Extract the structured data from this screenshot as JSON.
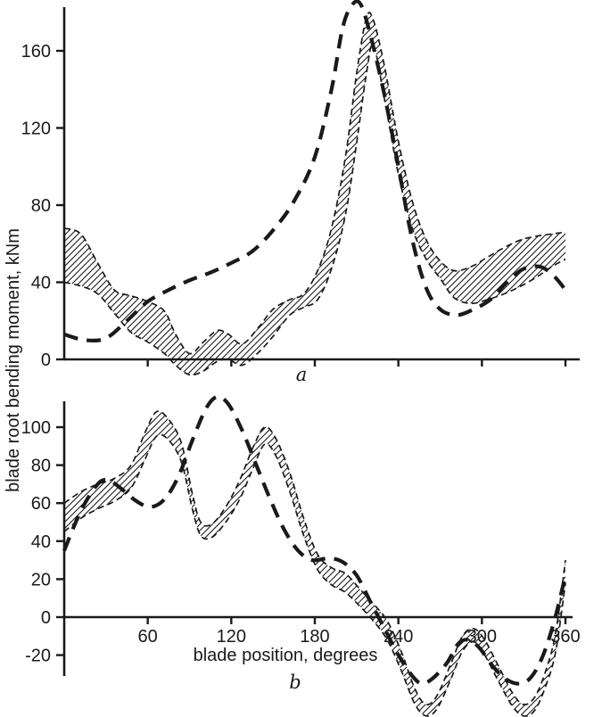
{
  "figure": {
    "y_axis_title": "blade root bending moment, kNm",
    "x_axis_title": "blade position, degrees",
    "x_unit": "degrees",
    "y_unit": "kNm",
    "ink_color": "#1a1a1a",
    "background_color": "#ffffff"
  },
  "chart_data": [
    {
      "type": "line",
      "panel_label": "a",
      "title": "",
      "xlabel": "",
      "ylabel": "blade root bending moment, kNm",
      "xlim": [
        0,
        360
      ],
      "ylim": [
        -12,
        190
      ],
      "grid": false,
      "legend_position": "none",
      "xticks": [
        60,
        120,
        180,
        240,
        300,
        360
      ],
      "show_xtick_labels": false,
      "yticks": [
        0,
        40,
        80,
        120,
        160
      ],
      "series": [
        {
          "name": "thick dashed curve",
          "line_style": "thick-dashed",
          "points": [
            [
              0,
              13
            ],
            [
              15,
              10
            ],
            [
              30,
              11
            ],
            [
              45,
              20
            ],
            [
              60,
              30
            ],
            [
              75,
              36
            ],
            [
              90,
              41
            ],
            [
              105,
              45
            ],
            [
              120,
              50
            ],
            [
              135,
              56
            ],
            [
              150,
              67
            ],
            [
              165,
              82
            ],
            [
              180,
              105
            ],
            [
              192,
              140
            ],
            [
              200,
              172
            ],
            [
              207,
              184
            ],
            [
              213,
              184
            ],
            [
              220,
              168
            ],
            [
              230,
              137
            ],
            [
              240,
              100
            ],
            [
              250,
              62
            ],
            [
              260,
              37
            ],
            [
              270,
              26
            ],
            [
              282,
              23
            ],
            [
              294,
              26
            ],
            [
              306,
              31
            ],
            [
              318,
              40
            ],
            [
              330,
              47
            ],
            [
              342,
              48
            ],
            [
              352,
              43
            ],
            [
              360,
              36
            ]
          ]
        }
      ],
      "band": {
        "name": "hatched envelope between thin dashed curves",
        "fill_style": "diagonal-hatch",
        "upper": [
          [
            0,
            68
          ],
          [
            12,
            65
          ],
          [
            24,
            50
          ],
          [
            36,
            36
          ],
          [
            48,
            33
          ],
          [
            60,
            30
          ],
          [
            72,
            25
          ],
          [
            80,
            13
          ],
          [
            90,
            3
          ],
          [
            100,
            9
          ],
          [
            110,
            15
          ],
          [
            118,
            13
          ],
          [
            128,
            8
          ],
          [
            140,
            17
          ],
          [
            150,
            26
          ],
          [
            162,
            31
          ],
          [
            172,
            34
          ],
          [
            182,
            46
          ],
          [
            192,
            68
          ],
          [
            202,
            105
          ],
          [
            210,
            148
          ],
          [
            217,
            177
          ],
          [
            222,
            176
          ],
          [
            230,
            152
          ],
          [
            240,
            113
          ],
          [
            250,
            82
          ],
          [
            260,
            62
          ],
          [
            270,
            51
          ],
          [
            280,
            46
          ],
          [
            292,
            48
          ],
          [
            304,
            53
          ],
          [
            316,
            58
          ],
          [
            328,
            62
          ],
          [
            340,
            64
          ],
          [
            350,
            65
          ],
          [
            360,
            66
          ]
        ],
        "lower": [
          [
            0,
            40
          ],
          [
            12,
            38
          ],
          [
            24,
            34
          ],
          [
            36,
            24
          ],
          [
            48,
            14
          ],
          [
            60,
            9
          ],
          [
            72,
            3
          ],
          [
            80,
            -3
          ],
          [
            90,
            -8
          ],
          [
            100,
            -6
          ],
          [
            110,
            -1
          ],
          [
            118,
            0
          ],
          [
            128,
            -3
          ],
          [
            140,
            4
          ],
          [
            150,
            12
          ],
          [
            162,
            23
          ],
          [
            172,
            27
          ],
          [
            182,
            31
          ],
          [
            192,
            47
          ],
          [
            202,
            75
          ],
          [
            210,
            112
          ],
          [
            217,
            148
          ],
          [
            222,
            163
          ],
          [
            230,
            135
          ],
          [
            240,
            96
          ],
          [
            250,
            68
          ],
          [
            260,
            52
          ],
          [
            270,
            42
          ],
          [
            280,
            32
          ],
          [
            292,
            29
          ],
          [
            304,
            31
          ],
          [
            316,
            34
          ],
          [
            328,
            38
          ],
          [
            340,
            43
          ],
          [
            350,
            48
          ],
          [
            360,
            52
          ]
        ]
      }
    },
    {
      "type": "line",
      "panel_label": "b",
      "title": "",
      "xlabel": "blade position, degrees",
      "ylabel": "blade root bending moment, kNm",
      "xlim": [
        0,
        360
      ],
      "ylim": [
        -55,
        120
      ],
      "grid": false,
      "legend_position": "none",
      "xticks": [
        60,
        120,
        180,
        240,
        300,
        360
      ],
      "show_xtick_labels": true,
      "yticks": [
        -20,
        0,
        20,
        40,
        60,
        80,
        100
      ],
      "series": [
        {
          "name": "thick dashed curve",
          "line_style": "thick-dashed",
          "points": [
            [
              0,
              35
            ],
            [
              12,
              56
            ],
            [
              24,
              70
            ],
            [
              32,
              72
            ],
            [
              42,
              67
            ],
            [
              52,
              61
            ],
            [
              62,
              58
            ],
            [
              72,
              62
            ],
            [
              82,
              74
            ],
            [
              92,
              93
            ],
            [
              102,
              110
            ],
            [
              110,
              116
            ],
            [
              118,
              112
            ],
            [
              128,
              98
            ],
            [
              138,
              80
            ],
            [
              148,
              62
            ],
            [
              158,
              46
            ],
            [
              168,
              35
            ],
            [
              178,
              30
            ],
            [
              190,
              31
            ],
            [
              200,
              29
            ],
            [
              210,
              22
            ],
            [
              220,
              8
            ],
            [
              230,
              -6
            ],
            [
              240,
              -20
            ],
            [
              250,
              -31
            ],
            [
              257,
              -35
            ],
            [
              265,
              -32
            ],
            [
              275,
              -24
            ],
            [
              283,
              -14
            ],
            [
              290,
              -12
            ],
            [
              298,
              -16
            ],
            [
              308,
              -26
            ],
            [
              318,
              -33
            ],
            [
              328,
              -35
            ],
            [
              336,
              -31
            ],
            [
              344,
              -20
            ],
            [
              352,
              -2
            ],
            [
              360,
              22
            ]
          ]
        }
      ],
      "band": {
        "name": "hatched envelope between thin dashed curves",
        "fill_style": "diagonal-hatch",
        "upper": [
          [
            0,
            60
          ],
          [
            12,
            66
          ],
          [
            24,
            70
          ],
          [
            36,
            73
          ],
          [
            48,
            80
          ],
          [
            58,
            97
          ],
          [
            66,
            108
          ],
          [
            74,
            105
          ],
          [
            84,
            92
          ],
          [
            92,
            65
          ],
          [
            98,
            50
          ],
          [
            106,
            49
          ],
          [
            116,
            58
          ],
          [
            126,
            72
          ],
          [
            136,
            90
          ],
          [
            144,
            100
          ],
          [
            152,
            94
          ],
          [
            162,
            76
          ],
          [
            172,
            52
          ],
          [
            182,
            33
          ],
          [
            192,
            26
          ],
          [
            202,
            23
          ],
          [
            212,
            15
          ],
          [
            222,
            7
          ],
          [
            232,
            -2
          ],
          [
            242,
            -18
          ],
          [
            252,
            -38
          ],
          [
            260,
            -46
          ],
          [
            268,
            -41
          ],
          [
            278,
            -24
          ],
          [
            286,
            -10
          ],
          [
            294,
            -6
          ],
          [
            302,
            -12
          ],
          [
            312,
            -26
          ],
          [
            322,
            -40
          ],
          [
            330,
            -46
          ],
          [
            338,
            -42
          ],
          [
            346,
            -28
          ],
          [
            353,
            -8
          ],
          [
            360,
            30
          ]
        ],
        "lower": [
          [
            0,
            45
          ],
          [
            12,
            52
          ],
          [
            24,
            57
          ],
          [
            36,
            61
          ],
          [
            48,
            68
          ],
          [
            58,
            83
          ],
          [
            66,
            95
          ],
          [
            74,
            94
          ],
          [
            84,
            82
          ],
          [
            92,
            57
          ],
          [
            98,
            43
          ],
          [
            106,
            42
          ],
          [
            116,
            50
          ],
          [
            126,
            62
          ],
          [
            136,
            79
          ],
          [
            144,
            91
          ],
          [
            152,
            85
          ],
          [
            162,
            66
          ],
          [
            172,
            43
          ],
          [
            182,
            25
          ],
          [
            192,
            17
          ],
          [
            202,
            13
          ],
          [
            212,
            6
          ],
          [
            222,
            -2
          ],
          [
            232,
            -12
          ],
          [
            242,
            -28
          ],
          [
            252,
            -46
          ],
          [
            260,
            -52
          ],
          [
            268,
            -48
          ],
          [
            278,
            -32
          ],
          [
            286,
            -18
          ],
          [
            294,
            -13
          ],
          [
            302,
            -20
          ],
          [
            312,
            -34
          ],
          [
            322,
            -47
          ],
          [
            330,
            -52
          ],
          [
            338,
            -49
          ],
          [
            346,
            -36
          ],
          [
            353,
            -18
          ],
          [
            360,
            18
          ]
        ]
      }
    }
  ]
}
